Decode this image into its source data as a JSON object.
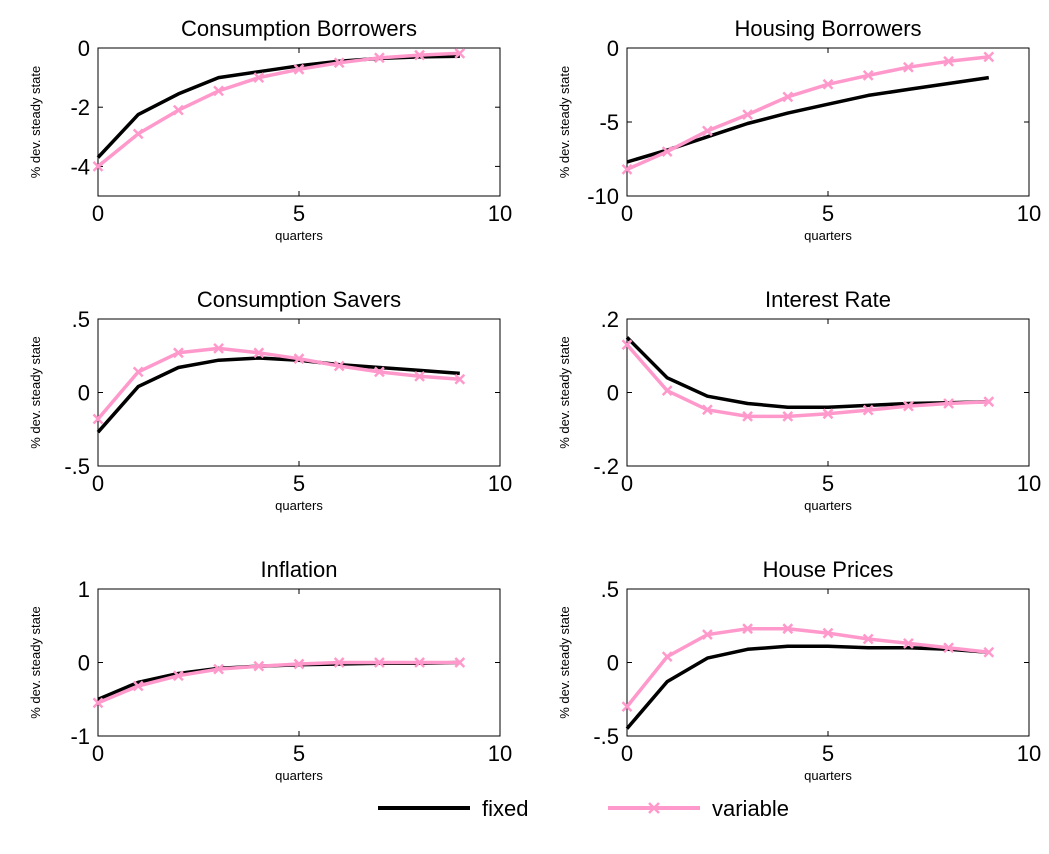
{
  "chart_data": [
    {
      "type": "line",
      "title": "Consumption Borrowers",
      "xlabel": "quarters",
      "ylabel": "% dev. steady state",
      "xlim": [
        0,
        10
      ],
      "ylim": [
        -5,
        0
      ],
      "xticks": [
        0,
        5,
        10
      ],
      "yticks": [
        -4,
        -2,
        0
      ],
      "x": [
        0,
        1,
        2,
        3,
        4,
        5,
        6,
        7,
        8,
        9
      ],
      "series": [
        {
          "name": "fixed",
          "values": [
            -3.7,
            -2.25,
            -1.55,
            -1.0,
            -0.8,
            -0.6,
            -0.45,
            -0.35,
            -0.3,
            -0.28
          ]
        },
        {
          "name": "variable",
          "values": [
            -4.0,
            -2.9,
            -2.1,
            -1.45,
            -1.0,
            -0.72,
            -0.5,
            -0.33,
            -0.24,
            -0.18
          ]
        }
      ]
    },
    {
      "type": "line",
      "title": "Housing Borrowers",
      "xlabel": "quarters",
      "ylabel": "% dev. steady state",
      "xlim": [
        0,
        10
      ],
      "ylim": [
        -10,
        0
      ],
      "xticks": [
        0,
        5,
        10
      ],
      "yticks": [
        -10,
        -5,
        0
      ],
      "x": [
        0,
        1,
        2,
        3,
        4,
        5,
        6,
        7,
        8,
        9
      ],
      "series": [
        {
          "name": "fixed",
          "values": [
            -7.7,
            -6.9,
            -6.0,
            -5.1,
            -4.4,
            -3.8,
            -3.2,
            -2.8,
            -2.4,
            -2.0
          ]
        },
        {
          "name": "variable",
          "values": [
            -8.2,
            -7.0,
            -5.6,
            -4.5,
            -3.3,
            -2.45,
            -1.85,
            -1.3,
            -0.9,
            -0.6
          ]
        }
      ]
    },
    {
      "type": "line",
      "title": "Consumption Savers",
      "xlabel": "quarters",
      "ylabel": "% dev. steady state",
      "xlim": [
        0,
        10
      ],
      "ylim": [
        -0.5,
        0.5
      ],
      "xticks": [
        0,
        5,
        10
      ],
      "yticks": [
        -0.5,
        0,
        0.5
      ],
      "x": [
        0,
        1,
        2,
        3,
        4,
        5,
        6,
        7,
        8,
        9
      ],
      "series": [
        {
          "name": "fixed",
          "values": [
            -0.27,
            0.04,
            0.17,
            0.22,
            0.235,
            0.22,
            0.19,
            0.17,
            0.15,
            0.13
          ]
        },
        {
          "name": "variable",
          "values": [
            -0.18,
            0.14,
            0.27,
            0.3,
            0.27,
            0.23,
            0.18,
            0.14,
            0.11,
            0.09
          ]
        }
      ]
    },
    {
      "type": "line",
      "title": "Interest Rate",
      "xlabel": "quarters",
      "ylabel": "% dev. steady state",
      "xlim": [
        0,
        10
      ],
      "ylim": [
        -0.2,
        0.2
      ],
      "xticks": [
        0,
        5,
        10
      ],
      "yticks": [
        -0.2,
        0,
        0.2
      ],
      "x": [
        0,
        1,
        2,
        3,
        4,
        5,
        6,
        7,
        8,
        9
      ],
      "series": [
        {
          "name": "fixed",
          "values": [
            0.15,
            0.04,
            -0.01,
            -0.03,
            -0.04,
            -0.04,
            -0.035,
            -0.03,
            -0.028,
            -0.025
          ]
        },
        {
          "name": "variable",
          "values": [
            0.13,
            0.005,
            -0.047,
            -0.065,
            -0.065,
            -0.058,
            -0.048,
            -0.037,
            -0.03,
            -0.025
          ]
        }
      ]
    },
    {
      "type": "line",
      "title": "Inflation",
      "xlabel": "quarters",
      "ylabel": "% dev. steady state",
      "xlim": [
        0,
        10
      ],
      "ylim": [
        -1,
        1
      ],
      "xticks": [
        0,
        5,
        10
      ],
      "yticks": [
        -1,
        0,
        1
      ],
      "x": [
        0,
        1,
        2,
        3,
        4,
        5,
        6,
        7,
        8,
        9
      ],
      "series": [
        {
          "name": "fixed",
          "values": [
            -0.5,
            -0.27,
            -0.15,
            -0.08,
            -0.05,
            -0.03,
            -0.02,
            -0.01,
            -0.01,
            0.0
          ]
        },
        {
          "name": "variable",
          "values": [
            -0.55,
            -0.32,
            -0.18,
            -0.09,
            -0.05,
            -0.02,
            0.0,
            0.0,
            0.0,
            0.0
          ]
        }
      ]
    },
    {
      "type": "line",
      "title": "House Prices",
      "xlabel": "quarters",
      "ylabel": "% dev. steady state",
      "xlim": [
        0,
        10
      ],
      "ylim": [
        -0.5,
        0.5
      ],
      "xticks": [
        0,
        5,
        10
      ],
      "yticks": [
        -0.5,
        0,
        0.5
      ],
      "x": [
        0,
        1,
        2,
        3,
        4,
        5,
        6,
        7,
        8,
        9
      ],
      "series": [
        {
          "name": "fixed",
          "values": [
            -0.45,
            -0.13,
            0.03,
            0.09,
            0.11,
            0.11,
            0.1,
            0.1,
            0.09,
            0.07
          ]
        },
        {
          "name": "variable",
          "values": [
            -0.3,
            0.04,
            0.19,
            0.23,
            0.23,
            0.2,
            0.16,
            0.13,
            0.1,
            0.07
          ]
        }
      ]
    }
  ],
  "legend": {
    "items": [
      {
        "label": "fixed",
        "color": "#000000",
        "marker": "none"
      },
      {
        "label": "variable",
        "color": "#ff99cc",
        "marker": "x"
      }
    ],
    "placement": "bottom-center"
  },
  "colors": {
    "fixed": "#000000",
    "variable": "#ff99cc"
  }
}
